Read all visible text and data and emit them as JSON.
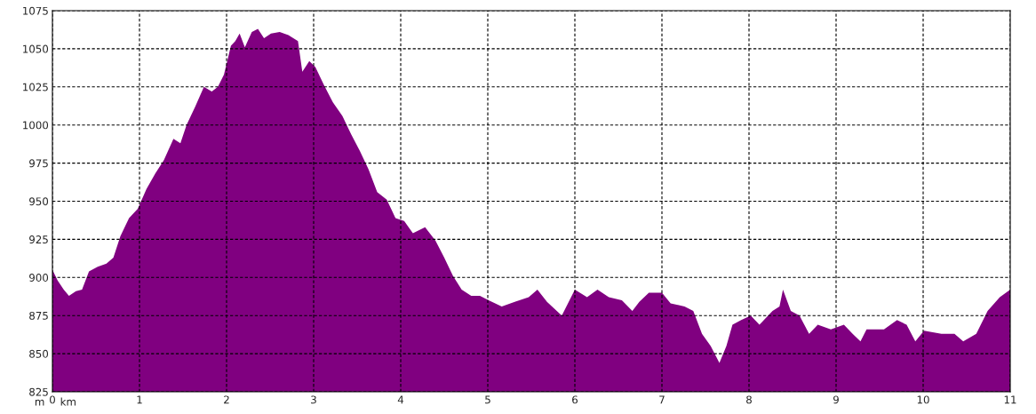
{
  "chart_data": {
    "type": "area",
    "xlabel": "km",
    "ylabel": "m",
    "x": [
      0,
      0.06,
      0.13,
      0.19,
      0.27,
      0.34,
      0.42,
      0.52,
      0.62,
      0.7,
      0.78,
      0.88,
      0.98,
      1.08,
      1.18,
      1.28,
      1.39,
      1.47,
      1.54,
      1.64,
      1.74,
      1.83,
      1.9,
      1.97,
      2.05,
      2.1,
      2.15,
      2.21,
      2.29,
      2.36,
      2.43,
      2.51,
      2.61,
      2.71,
      2.82,
      2.87,
      2.95,
      3.02,
      3.12,
      3.22,
      3.33,
      3.43,
      3.53,
      3.63,
      3.73,
      3.84,
      3.94,
      4.04,
      4.14,
      4.28,
      4.4,
      4.5,
      4.6,
      4.7,
      4.81,
      4.91,
      5.01,
      5.16,
      5.31,
      5.47,
      5.57,
      5.68,
      5.85,
      6.0,
      6.14,
      6.26,
      6.39,
      6.54,
      6.66,
      6.74,
      6.85,
      7.0,
      7.1,
      7.26,
      7.36,
      7.46,
      7.56,
      7.66,
      7.74,
      7.81,
      7.91,
      8.02,
      8.12,
      8.27,
      8.35,
      8.39,
      8.48,
      8.58,
      8.69,
      8.79,
      8.94,
      9.09,
      9.19,
      9.28,
      9.35,
      9.55,
      9.7,
      9.81,
      9.91,
      10.01,
      10.21,
      10.36,
      10.46,
      10.61,
      10.74,
      10.88,
      11.0
    ],
    "series": [
      {
        "color": "#800080",
        "values": [
          905,
          898,
          892,
          888,
          891,
          892,
          904,
          907,
          909,
          913,
          927,
          939,
          945,
          958,
          968,
          977,
          991,
          988,
          1000,
          1012,
          1025,
          1022,
          1025,
          1033,
          1052,
          1055,
          1060,
          1051,
          1061,
          1063,
          1057,
          1060,
          1061,
          1059,
          1055,
          1035,
          1042,
          1038,
          1026,
          1015,
          1006,
          994,
          983,
          971,
          956,
          951,
          939,
          937,
          929,
          933,
          924,
          913,
          901,
          892,
          888,
          888,
          885,
          881,
          884,
          887,
          892,
          884,
          875,
          892,
          887,
          892,
          887,
          885,
          878,
          884,
          890,
          890,
          883,
          881,
          878,
          863,
          855,
          844,
          855,
          869,
          872,
          875,
          869,
          878,
          881,
          892,
          878,
          875,
          863,
          869,
          866,
          869,
          863,
          858,
          866,
          866,
          872,
          869,
          858,
          865,
          863,
          863,
          858,
          863,
          878,
          887,
          892
        ]
      }
    ],
    "xlim": [
      0,
      11
    ],
    "ylim": [
      825,
      1075
    ],
    "xticks": [
      0,
      1,
      2,
      3,
      4,
      5,
      6,
      7,
      8,
      9,
      10,
      11
    ],
    "yticks": [
      825,
      850,
      875,
      900,
      925,
      950,
      975,
      1000,
      1025,
      1050,
      1075
    ],
    "grid": true,
    "line_style": "dashed"
  }
}
